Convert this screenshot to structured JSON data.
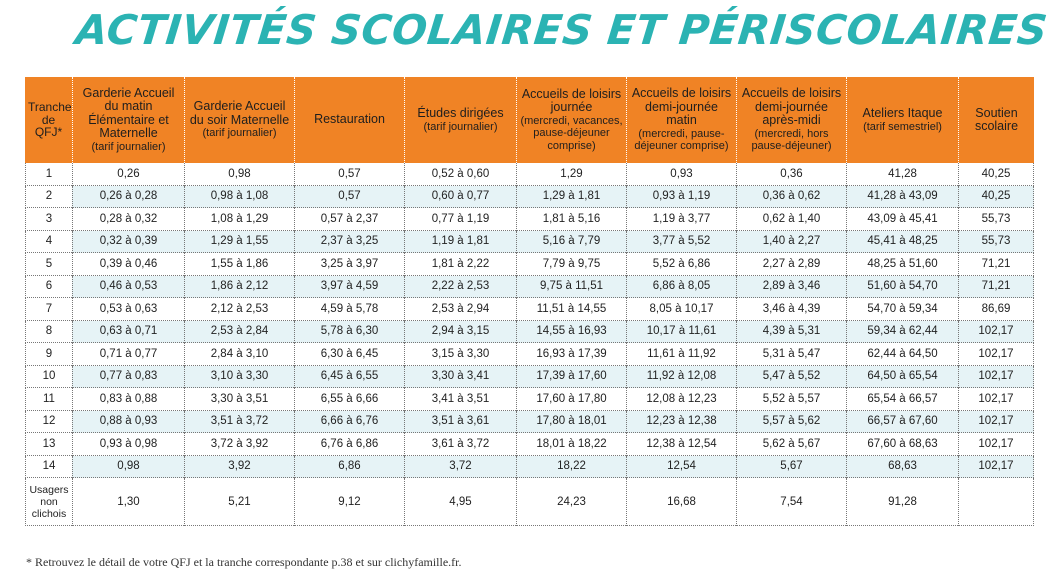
{
  "title": "Activités scolaires et périscolaires",
  "table": {
    "headers": [
      {
        "main": "Tranche de QFJ*",
        "sub": ""
      },
      {
        "main": "Garderie Accueil du matin Élémentaire et Maternelle",
        "sub": "(tarif journalier)"
      },
      {
        "main": "Garderie Accueil du soir Maternelle",
        "sub": "(tarif journalier)"
      },
      {
        "main": "Restauration",
        "sub": ""
      },
      {
        "main": "Études dirigées",
        "sub": "(tarif journalier)"
      },
      {
        "main": "Accueils de loisirs journée",
        "sub": "(mercredi, vacances, pause-déjeuner comprise)"
      },
      {
        "main": "Accueils de loisirs demi-journée matin",
        "sub": "(mercredi, pause-déjeuner comprise)"
      },
      {
        "main": "Accueils de loisirs demi-journée après-midi",
        "sub": "(mercredi, hors pause-déjeuner)"
      },
      {
        "main": "Ateliers Itaque",
        "sub": "(tarif semestriel)"
      },
      {
        "main": "Soutien scolaire",
        "sub": ""
      }
    ],
    "rows": [
      [
        "1",
        "0,26",
        "0,98",
        "0,57",
        "0,52 à 0,60",
        "1,29",
        "0,93",
        "0,36",
        "41,28",
        "40,25"
      ],
      [
        "2",
        "0,26 à 0,28",
        "0,98 à 1,08",
        "0,57",
        "0,60 à 0,77",
        "1,29 à 1,81",
        "0,93 à 1,19",
        "0,36 à 0,62",
        "41,28 à 43,09",
        "40,25"
      ],
      [
        "3",
        "0,28 à 0,32",
        "1,08 à 1,29",
        "0,57 à 2,37",
        "0,77 à 1,19",
        "1,81 à 5,16",
        "1,19 à 3,77",
        "0,62 à 1,40",
        "43,09 à 45,41",
        "55,73"
      ],
      [
        "4",
        "0,32 à 0,39",
        "1,29 à 1,55",
        "2,37 à 3,25",
        "1,19 à 1,81",
        "5,16 à 7,79",
        "3,77 à 5,52",
        "1,40 à 2,27",
        "45,41 à 48,25",
        "55,73"
      ],
      [
        "5",
        "0,39 à 0,46",
        "1,55 à 1,86",
        "3,25 à 3,97",
        "1,81 à 2,22",
        "7,79 à 9,75",
        "5,52 à 6,86",
        "2,27 à 2,89",
        "48,25 à 51,60",
        "71,21"
      ],
      [
        "6",
        "0,46 à 0,53",
        "1,86 à 2,12",
        "3,97 à 4,59",
        "2,22 à 2,53",
        "9,75 à 11,51",
        "6,86 à 8,05",
        "2,89 à 3,46",
        "51,60 à 54,70",
        "71,21"
      ],
      [
        "7",
        "0,53 à 0,63",
        "2,12 à 2,53",
        "4,59 à 5,78",
        "2,53 à 2,94",
        "11,51 à 14,55",
        "8,05 à 10,17",
        "3,46 à 4,39",
        "54,70 à 59,34",
        "86,69"
      ],
      [
        "8",
        "0,63 à 0,71",
        "2,53 à 2,84",
        "5,78 à 6,30",
        "2,94 à 3,15",
        "14,55 à 16,93",
        "10,17 à 11,61",
        "4,39 à 5,31",
        "59,34 à 62,44",
        "102,17"
      ],
      [
        "9",
        "0,71 à 0,77",
        "2,84 à 3,10",
        "6,30 à 6,45",
        "3,15 à 3,30",
        "16,93 à 17,39",
        "11,61 à 11,92",
        "5,31 à 5,47",
        "62,44 à 64,50",
        "102,17"
      ],
      [
        "10",
        "0,77 à 0,83",
        "3,10 à 3,30",
        "6,45 à 6,55",
        "3,30 à 3,41",
        "17,39 à 17,60",
        "11,92 à 12,08",
        "5,47 à 5,52",
        "64,50 à 65,54",
        "102,17"
      ],
      [
        "11",
        "0,83 à 0,88",
        "3,30 à 3,51",
        "6,55 à 6,66",
        "3,41 à 3,51",
        "17,60 à 17,80",
        "12,08 à 12,23",
        "5,52 à 5,57",
        "65,54 à 66,57",
        "102,17"
      ],
      [
        "12",
        "0,88 à 0,93",
        "3,51 à 3,72",
        "6,66 à 6,76",
        "3,51 à 3,61",
        "17,80 à 18,01",
        "12,23 à 12,38",
        "5,57 à 5,62",
        "66,57 à 67,60",
        "102,17"
      ],
      [
        "13",
        "0,93 à 0,98",
        "3,72 à 3,92",
        "6,76 à 6,86",
        "3,61 à 3,72",
        "18,01 à 18,22",
        "12,38 à 12,54",
        "5,62 à 5,67",
        "67,60 à 68,63",
        "102,17"
      ],
      [
        "14",
        "0,98",
        "3,92",
        "6,86",
        "3,72",
        "18,22",
        "12,54",
        "5,67",
        "68,63",
        "102,17"
      ],
      [
        "Usagers non clichois",
        "1,30",
        "5,21",
        "9,12",
        "4,95",
        "24,23",
        "16,68",
        "7,54",
        "91,28",
        ""
      ]
    ]
  },
  "footnote": "* Retrouvez le détail de votre QFJ et la tranche correspondante p.38 et sur clichyfamille.fr.",
  "colors": {
    "title": "#2bb3b3",
    "header_bg": "#f08325",
    "stripe_bg": "#e6f3f6"
  }
}
